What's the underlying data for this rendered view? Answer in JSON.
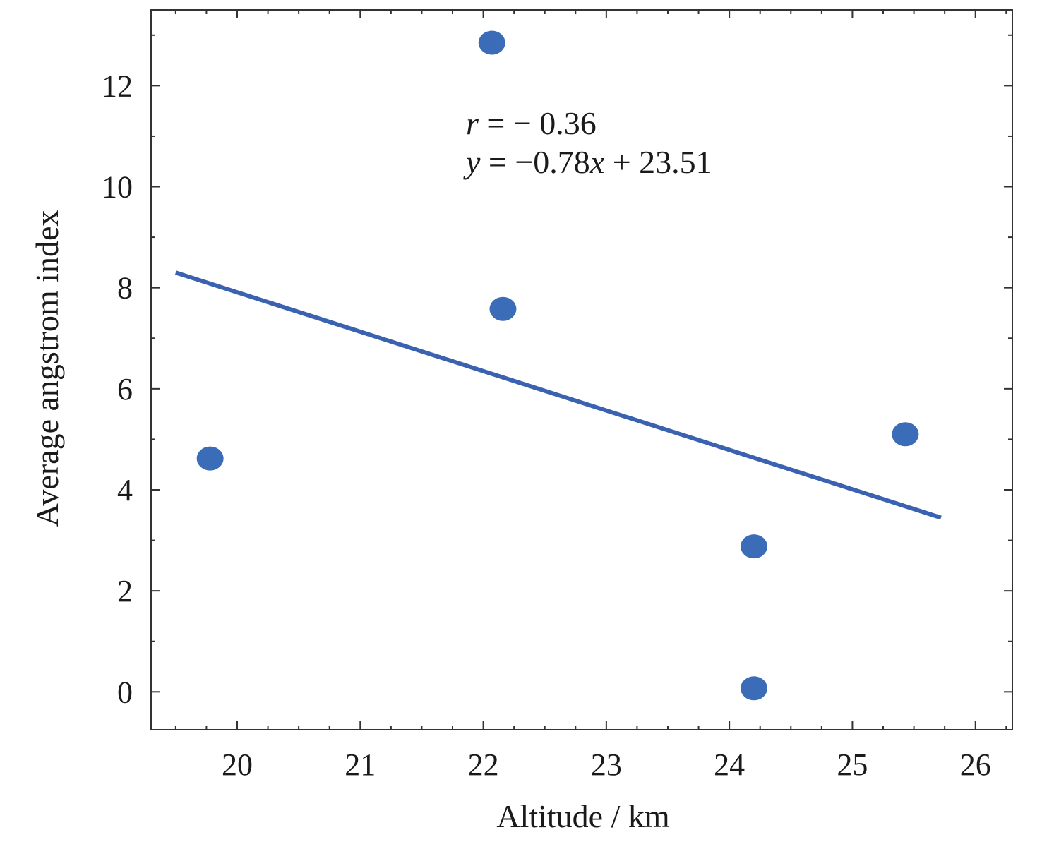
{
  "chart_data": {
    "type": "scatter",
    "xlabel": "Altitude / km",
    "ylabel": "Average angstrom index",
    "xlim": [
      19.3,
      26.3
    ],
    "ylim": [
      -0.75,
      13.5
    ],
    "x_ticks": [
      20,
      21,
      22,
      23,
      24,
      25,
      26
    ],
    "y_ticks": [
      0,
      2,
      4,
      6,
      8,
      10,
      12
    ],
    "x_tick_labels": [
      "20",
      "21",
      "22",
      "23",
      "24",
      "25",
      "26"
    ],
    "y_tick_labels": [
      "0",
      "2",
      "4",
      "6",
      "8",
      "10",
      "12"
    ],
    "grid": false,
    "points": [
      {
        "x": 19.78,
        "y": 4.62
      },
      {
        "x": 22.07,
        "y": 12.85
      },
      {
        "x": 22.16,
        "y": 7.58
      },
      {
        "x": 24.2,
        "y": 2.88
      },
      {
        "x": 24.2,
        "y": 0.07
      },
      {
        "x": 25.43,
        "y": 5.1
      }
    ],
    "fit_line": {
      "slope": -0.78,
      "intercept": 23.51,
      "x_range": [
        19.5,
        25.72
      ]
    },
    "annotations": {
      "r_var": "r",
      "r_rest": " = − 0.36",
      "eq_var": "y",
      "eq_mid": " = −0.78",
      "eq_x": "x",
      "eq_rest": " + 23.51"
    },
    "colors": {
      "points": "#3a6cb8",
      "line": "#3a62b0",
      "axis": "#333333"
    }
  }
}
